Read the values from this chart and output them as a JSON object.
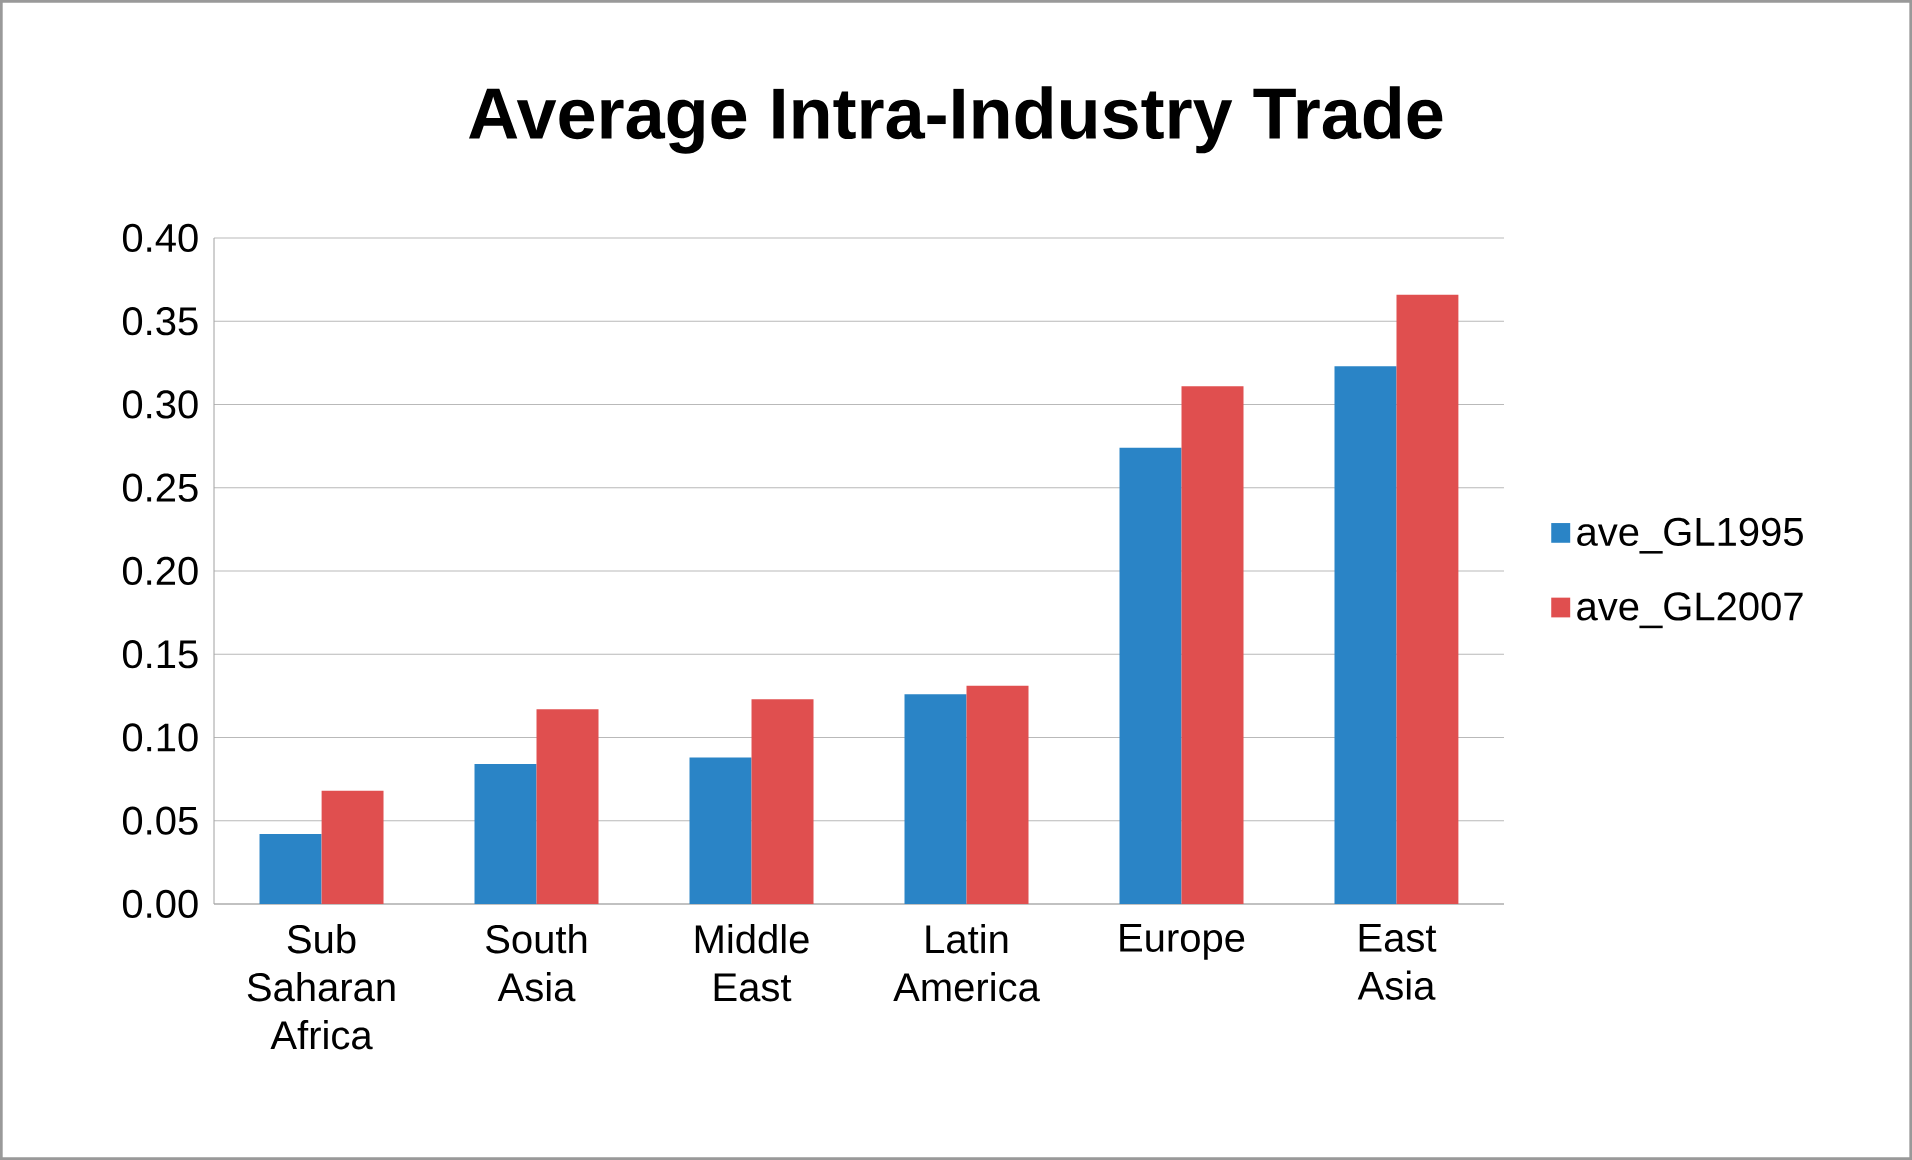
{
  "chart_data": {
    "type": "bar",
    "title": "Average Intra-Industry Trade",
    "categories": [
      "Sub Saharan Africa",
      "South Asia",
      "Middle East",
      "Latin America",
      "Europe",
      "East Asia"
    ],
    "series": [
      {
        "name": "ave_GL1995",
        "color": "#2a84c6",
        "values": [
          0.042,
          0.084,
          0.088,
          0.126,
          0.274,
          0.323
        ]
      },
      {
        "name": "ave_GL2007",
        "color": "#e04f4f",
        "values": [
          0.068,
          0.117,
          0.123,
          0.131,
          0.311,
          0.366
        ]
      }
    ],
    "ylim": [
      0,
      0.4
    ],
    "yticks": [
      {
        "value": 0,
        "label": "0.00"
      },
      {
        "value": 0.05,
        "label": "0.05"
      },
      {
        "value": 0.1,
        "label": "0.10"
      },
      {
        "value": 0.15,
        "label": "0.15"
      },
      {
        "value": 0.2,
        "label": "0.20"
      },
      {
        "value": 0.25,
        "label": "0.25"
      },
      {
        "value": 0.3,
        "label": "0.30"
      },
      {
        "value": 0.35,
        "label": "0.35"
      },
      {
        "value": 0.4,
        "label": "0.40"
      }
    ],
    "grid": "y",
    "legend": "right"
  }
}
